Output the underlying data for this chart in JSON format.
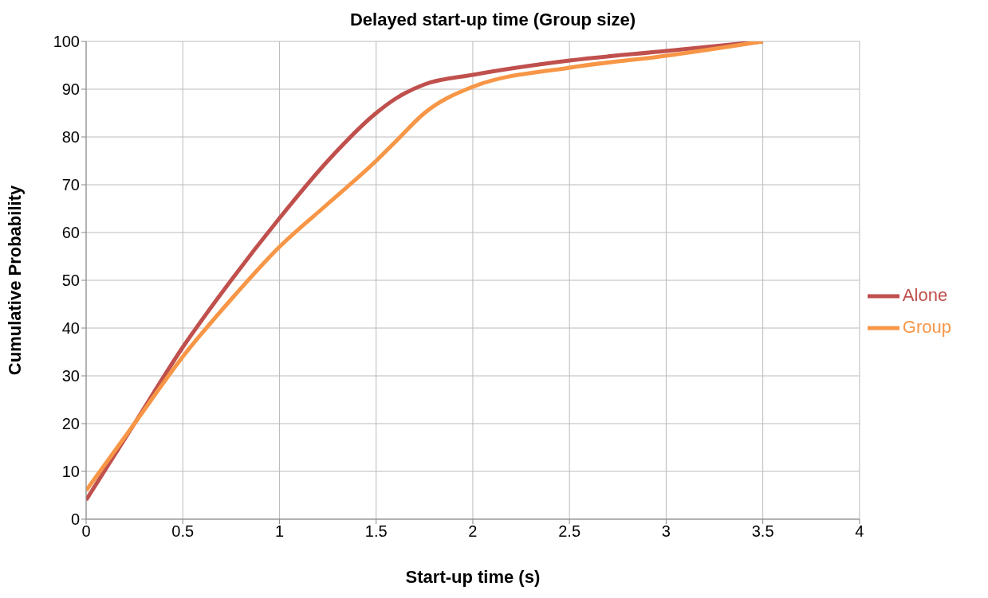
{
  "chart_data": {
    "type": "line",
    "title": "Delayed start-up time (Group size)",
    "xlabel": "Start-up time (s)",
    "ylabel": "Cumulative Probability",
    "xlim": [
      0,
      4
    ],
    "xticks": [
      0,
      0.5,
      1,
      1.5,
      2,
      2.5,
      3,
      3.5,
      4
    ],
    "ylim": [
      0,
      100
    ],
    "yticks": [
      0,
      10,
      20,
      30,
      40,
      50,
      60,
      70,
      80,
      90,
      100
    ],
    "grid": true,
    "legend": "right",
    "marker": "none",
    "series": [
      {
        "name": "Alone",
        "color": "#c0504d",
        "x": [
          0,
          0.25,
          0.5,
          0.75,
          1,
          1.25,
          1.5,
          1.6,
          1.75,
          2,
          2.5,
          3,
          3.5
        ],
        "values": [
          4,
          20,
          36,
          50,
          63,
          75,
          85,
          88,
          91,
          93,
          96,
          98,
          100
        ]
      },
      {
        "name": "Group",
        "color": "#f79646",
        "x": [
          0,
          0.25,
          0.5,
          0.75,
          1,
          1.25,
          1.5,
          1.6,
          1.75,
          2,
          2.5,
          3,
          3.5
        ],
        "values": [
          6,
          20,
          34,
          46,
          57,
          66,
          75,
          79,
          85,
          90.5,
          94.5,
          97,
          100
        ]
      }
    ]
  }
}
